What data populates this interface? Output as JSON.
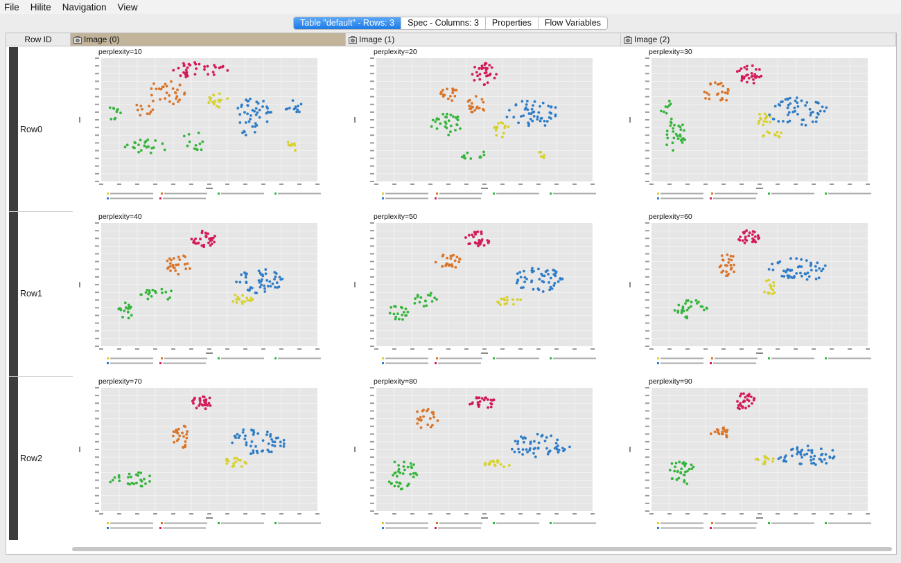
{
  "menu": [
    "File",
    "Hilite",
    "Navigation",
    "View"
  ],
  "tabs": [
    {
      "label": "Table \"default\" - Rows: 3",
      "active": true
    },
    {
      "label": "Spec - Columns: 3",
      "active": false
    },
    {
      "label": "Properties",
      "active": false
    },
    {
      "label": "Flow Variables",
      "active": false
    }
  ],
  "table": {
    "rowid_header": "Row ID",
    "columns": [
      "Image (0)",
      "Image (1)",
      "Image (2)"
    ],
    "rows": [
      {
        "id": "Row0",
        "cells": [
          "perplexity=10",
          "perplexity=20",
          "perplexity=30"
        ]
      },
      {
        "id": "Row1",
        "cells": [
          "perplexity=40",
          "perplexity=50",
          "perplexity=60"
        ]
      },
      {
        "id": "Row2",
        "cells": [
          "perplexity=70",
          "perplexity=80",
          "perplexity=90"
        ]
      }
    ]
  },
  "series_colors": {
    "bioorg_2005": "#d7d12a",
    "j_med_chem_2008": "#d9752a",
    "bioorg_2005_b": "#35b53b",
    "j_med_chem_2006": "#2f7dc6",
    "med_chem_res_2011": "#d31a5a"
  },
  "icons": {
    "column_header": "image-column-icon"
  }
}
